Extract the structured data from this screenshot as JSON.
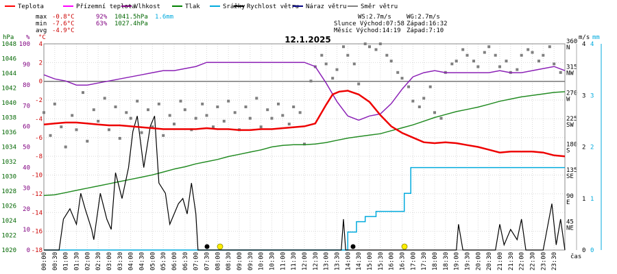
{
  "chart_data": {
    "type": "line",
    "title": "12.1.2025",
    "xlabel": "čas",
    "legend": [
      {
        "name": "Teplota",
        "color": "#ff0000"
      },
      {
        "name": "Přízemní teplota",
        "color": "#ff00ff"
      },
      {
        "name": "Vlhkost",
        "color": "#800080"
      },
      {
        "name": "Tlak",
        "color": "#008000"
      },
      {
        "name": "Srážky",
        "color": "#00aadd"
      },
      {
        "name": "Rychlost větru",
        "color": "#000000"
      },
      {
        "name": "Náraz větru",
        "color": "#000080"
      },
      {
        "name": "Směr větru",
        "color": "#808080"
      }
    ],
    "stats": {
      "max": {
        "label": "max",
        "temp": "-0.8°C",
        "hum": "92%",
        "press": "1041.5hPa",
        "rain": "1.6mm"
      },
      "min": {
        "label": "min",
        "temp": "-7.6°C",
        "hum": "63%",
        "press": "1027.4hPa"
      },
      "avg": {
        "label": "avg",
        "temp": "-4.9°C"
      }
    },
    "astro": {
      "ws": "WS:2.7m/s",
      "wg": "WG:2.7m/s",
      "sun_rise": "Slunce Východ:07:58",
      "sun_set": "Západ:16:32",
      "moon_rise": "Měsíc  Východ:14:19",
      "moon_set": "Západ:7:10"
    },
    "axes": {
      "hpa": {
        "unit": "hPa",
        "min": 1020,
        "max": 1048,
        "ticks": [
          "1048",
          "1046",
          "1044",
          "1042",
          "1040",
          "1038",
          "1036",
          "1034",
          "1032",
          "1030",
          "1028",
          "1026",
          "1024",
          "1022",
          "1020"
        ]
      },
      "pct": {
        "unit": "%",
        "min": 0,
        "max": 100,
        "ticks": [
          "100",
          "90",
          "80",
          "70",
          "60",
          "50",
          "40",
          "30",
          "20",
          "10",
          "0"
        ]
      },
      "temp": {
        "unit": "°C",
        "min": -18,
        "max": 4,
        "ticks": [
          "4",
          "2",
          "0",
          "-2",
          "-4",
          "-6",
          "-8",
          "-10",
          "-12",
          "-14",
          "-16",
          "-18"
        ]
      },
      "dir": {
        "min": 0,
        "max": 360,
        "ticks": [
          "360",
          "315",
          "270",
          "225",
          "180",
          "135",
          "90",
          "45"
        ],
        "names": [
          "N",
          "NW",
          "W",
          "SW",
          "S",
          "SE",
          "E",
          "NE"
        ]
      },
      "ms": {
        "unit": "m/s",
        "min": 0,
        "max": 4,
        "ticks": [
          "4",
          "3",
          "2",
          "1",
          "0"
        ]
      },
      "mm": {
        "unit": "mm",
        "min": 0,
        "max": 4,
        "ticks": [
          "4",
          "3",
          "2",
          "1",
          "0"
        ]
      }
    },
    "x_range": [
      0,
      24
    ],
    "x_ticks": [
      "00:00",
      "00:30",
      "01:00",
      "01:30",
      "02:00",
      "02:30",
      "03:00",
      "03:30",
      "04:00",
      "04:30",
      "05:00",
      "05:30",
      "06:00",
      "06:30",
      "07:00",
      "07:30",
      "08:00",
      "08:30",
      "09:00",
      "09:30",
      "10:00",
      "10:30",
      "11:00",
      "11:30",
      "12:00",
      "12:30",
      "13:00",
      "13:30",
      "14:00",
      "14:30",
      "15:00",
      "15:30",
      "16:00",
      "16:30",
      "17:00",
      "17:30",
      "18:00",
      "18:30",
      "19:00",
      "19:30",
      "20:00",
      "20:30",
      "21:00",
      "21:30",
      "22:00",
      "22:30",
      "23:00",
      "23:30"
    ],
    "series": {
      "temperature": {
        "name": "Teplota",
        "unit": "°C",
        "color": "#ff0000",
        "x": [
          0,
          0.5,
          1,
          1.5,
          2,
          2.5,
          3,
          3.5,
          4,
          4.5,
          5,
          5.5,
          6,
          6.5,
          7,
          7.5,
          8,
          8.5,
          9,
          9.5,
          10,
          10.5,
          11,
          11.5,
          12,
          12.5,
          13,
          13.3,
          13.6,
          14,
          14.5,
          15,
          15.5,
          16,
          16.5,
          17,
          17.5,
          18,
          18.5,
          19,
          19.5,
          20,
          20.5,
          21,
          21.5,
          22,
          22.5,
          23,
          23.5,
          24
        ],
        "values": [
          -4.6,
          -4.5,
          -4.4,
          -4.4,
          -4.5,
          -4.6,
          -4.7,
          -4.7,
          -4.8,
          -4.9,
          -5.0,
          -5.1,
          -5.1,
          -5.1,
          -5.1,
          -5.0,
          -5.1,
          -5.1,
          -5.2,
          -5.2,
          -5.1,
          -5.1,
          -5.0,
          -4.9,
          -4.8,
          -4.5,
          -2.5,
          -1.4,
          -1.1,
          -1.0,
          -1.4,
          -2.2,
          -3.6,
          -4.8,
          -5.5,
          -6.0,
          -6.5,
          -6.6,
          -6.5,
          -6.6,
          -6.8,
          -7.0,
          -7.3,
          -7.6,
          -7.5,
          -7.5,
          -7.5,
          -7.6,
          -7.9,
          -8.0
        ]
      },
      "humidity": {
        "name": "Vlhkost",
        "unit": "%",
        "color": "#800080",
        "x": [
          0,
          0.5,
          1,
          1.5,
          2,
          2.5,
          3,
          3.5,
          4,
          4.5,
          5,
          5.5,
          6,
          6.5,
          7,
          7.5,
          8,
          8.5,
          9,
          9.5,
          10,
          10.5,
          11,
          11.5,
          12,
          12.5,
          13,
          13.5,
          14,
          14.5,
          15,
          15.5,
          16,
          16.5,
          17,
          17.5,
          18,
          18.5,
          19,
          19.5,
          20,
          20.5,
          21,
          21.5,
          22,
          22.5,
          23,
          23.5,
          24
        ],
        "values": [
          85,
          83,
          82,
          80,
          80,
          81,
          82,
          83,
          84,
          85,
          86,
          87,
          87,
          88,
          89,
          91,
          91,
          91,
          91,
          91,
          91,
          91,
          91,
          91,
          91,
          89,
          81,
          72,
          65,
          63,
          65,
          66,
          71,
          78,
          84,
          86,
          87,
          86,
          86,
          86,
          86,
          86,
          87,
          86,
          86,
          87,
          88,
          89,
          87
        ]
      },
      "pressure": {
        "name": "Tlak",
        "unit": "hPa",
        "color": "#008000",
        "x": [
          0,
          0.5,
          1,
          1.5,
          2,
          2.5,
          3,
          3.5,
          4,
          4.5,
          5,
          5.5,
          6,
          6.5,
          7,
          7.5,
          8,
          8.5,
          9,
          9.5,
          10,
          10.5,
          11,
          11.5,
          12,
          12.5,
          13,
          13.5,
          14,
          14.5,
          15,
          15.5,
          16,
          16.5,
          17,
          17.5,
          18,
          18.5,
          19,
          19.5,
          20,
          20.5,
          21,
          21.5,
          22,
          22.5,
          23,
          23.5,
          24
        ],
        "values": [
          1027.4,
          1027.5,
          1027.8,
          1028.1,
          1028.4,
          1028.7,
          1029.0,
          1029.3,
          1029.6,
          1029.9,
          1030.2,
          1030.6,
          1031.0,
          1031.3,
          1031.7,
          1032.0,
          1032.3,
          1032.7,
          1033.0,
          1033.3,
          1033.6,
          1034.0,
          1034.2,
          1034.3,
          1034.3,
          1034.4,
          1034.6,
          1034.9,
          1035.2,
          1035.4,
          1035.6,
          1035.8,
          1036.2,
          1036.6,
          1037.0,
          1037.5,
          1038.0,
          1038.4,
          1038.8,
          1039.1,
          1039.4,
          1039.8,
          1040.2,
          1040.5,
          1040.8,
          1041.0,
          1041.2,
          1041.4,
          1041.5
        ]
      },
      "precipitation": {
        "name": "Srážky",
        "unit": "mm",
        "color": "#00aadd",
        "x": [
          0,
          13.6,
          14.0,
          14.4,
          14.8,
          15.3,
          16.3,
          16.6,
          16.9,
          24
        ],
        "values": [
          0,
          0,
          0.35,
          0.55,
          0.65,
          0.75,
          0.75,
          1.1,
          1.6,
          1.6
        ]
      },
      "wind_speed": {
        "name": "Rychlost větru",
        "unit": "m/s",
        "color": "#000000",
        "x": [
          0,
          0.7,
          0.9,
          1.2,
          1.5,
          1.7,
          1.9,
          2.2,
          2.3,
          2.6,
          2.9,
          3.1,
          3.3,
          3.6,
          3.9,
          4.1,
          4.3,
          4.6,
          4.9,
          5.1,
          5.3,
          5.6,
          5.8,
          6.2,
          6.4,
          6.6,
          6.8,
          7.0,
          7.1,
          13.7,
          13.8,
          13.9,
          14.0,
          19.0,
          19.1,
          19.3,
          20.8,
          21.0,
          21.2,
          21.5,
          21.8,
          22.0,
          22.2,
          23.0,
          23.4,
          23.6,
          23.8,
          24
        ],
        "values": [
          0,
          0,
          0.6,
          0.8,
          0.5,
          1.1,
          0.8,
          0.4,
          0.2,
          1.1,
          0.6,
          0.4,
          1.5,
          1.0,
          1.6,
          2.3,
          2.6,
          1.6,
          2.4,
          2.6,
          1.3,
          1.1,
          0.5,
          0.9,
          1.0,
          0.7,
          1.3,
          0.7,
          0,
          0,
          0.6,
          0,
          0,
          0,
          0.5,
          0,
          0,
          0.5,
          0.1,
          0.4,
          0.2,
          0.6,
          0,
          0,
          0.9,
          0.1,
          0.6,
          0
        ]
      },
      "wind_direction": {
        "name": "Směr větru",
        "unit": "°",
        "x": [
          0.0,
          0.3,
          0.5,
          0.8,
          1.0,
          1.3,
          1.5,
          1.8,
          2.0,
          2.3,
          2.5,
          2.8,
          3.0,
          3.3,
          3.5,
          3.8,
          4.0,
          4.3,
          4.5,
          4.8,
          5.0,
          5.3,
          5.5,
          5.8,
          6.0,
          6.3,
          6.5,
          6.8,
          7.0,
          7.3,
          7.5,
          7.8,
          8.0,
          8.3,
          8.5,
          8.8,
          9.0,
          9.3,
          9.5,
          9.8,
          10.0,
          10.3,
          10.5,
          10.8,
          11.0,
          11.3,
          11.5,
          11.8,
          12.0,
          12.3,
          12.5,
          12.8,
          13.0,
          13.3,
          13.5,
          13.8,
          14.0,
          14.3,
          14.5,
          14.8,
          15.0,
          15.3,
          15.5,
          15.8,
          16.0,
          16.3,
          16.5,
          16.8,
          17.0,
          17.3,
          17.5,
          17.8,
          18.0,
          18.3,
          18.5,
          18.8,
          19.0,
          19.3,
          19.5,
          19.8,
          20.0,
          20.3,
          20.5,
          20.8,
          21.0,
          21.3,
          21.5,
          21.8,
          22.0,
          22.3,
          22.5,
          22.8,
          23.0,
          23.3,
          23.5,
          23.8
        ],
        "values": [
          240,
          200,
          255,
          215,
          180,
          235,
          210,
          275,
          190,
          245,
          225,
          265,
          210,
          250,
          195,
          240,
          230,
          260,
          205,
          245,
          215,
          255,
          200,
          235,
          220,
          260,
          245,
          210,
          230,
          255,
          235,
          215,
          250,
          225,
          260,
          240,
          210,
          250,
          230,
          265,
          215,
          245,
          230,
          255,
          235,
          220,
          250,
          240,
          185,
          295,
          320,
          340,
          325,
          300,
          315,
          355,
          340,
          325,
          290,
          360,
          355,
          350,
          360,
          340,
          330,
          310,
          300,
          285,
          260,
          250,
          265,
          285,
          240,
          230,
          310,
          325,
          330,
          350,
          340,
          330,
          320,
          345,
          355,
          340,
          320,
          330,
          310,
          315,
          340,
          350,
          345,
          330,
          340,
          355,
          325,
          310
        ]
      }
    }
  }
}
